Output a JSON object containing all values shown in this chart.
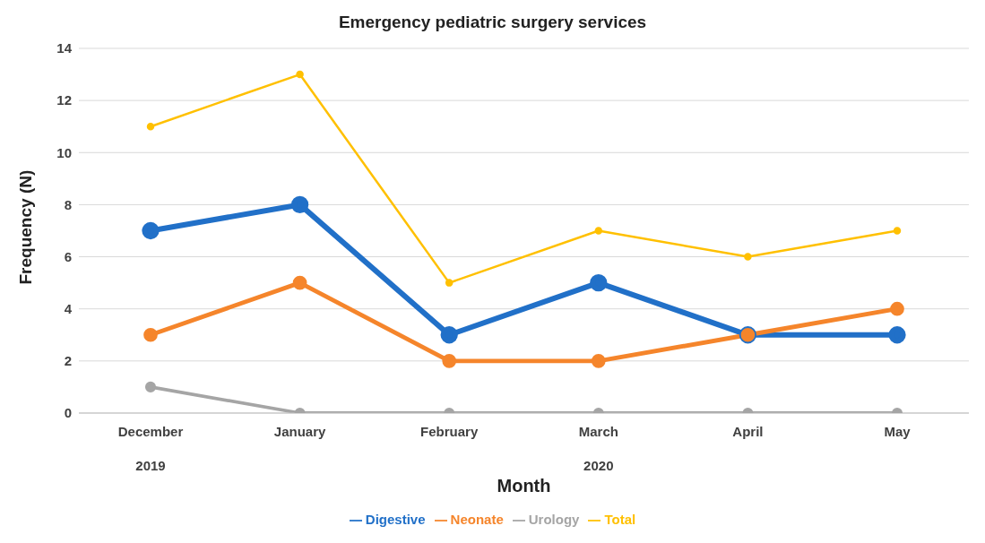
{
  "chart_data": {
    "type": "line",
    "title": "Emergency pediatric surgery services",
    "xlabel": "Month",
    "ylabel": "Frequency (N)",
    "categories": [
      "December",
      "January",
      "February",
      "March",
      "April",
      "May"
    ],
    "annotations": [
      "2019",
      "2020"
    ],
    "series": [
      {
        "name": "Digestive",
        "color": "#2170c8",
        "values": [
          7,
          8,
          3,
          5,
          3,
          3
        ]
      },
      {
        "name": "Neonate",
        "color": "#f5852b",
        "values": [
          3,
          5,
          2,
          2,
          3,
          4
        ]
      },
      {
        "name": "Urology",
        "color": "#a5a5a5",
        "values": [
          1,
          0,
          0,
          0,
          0,
          0
        ]
      },
      {
        "name": "Total",
        "color": "#ffc000",
        "values": [
          11,
          13,
          5,
          7,
          6,
          7
        ]
      }
    ],
    "ylim": [
      0,
      14
    ],
    "yticks": [
      0,
      2,
      4,
      6,
      8,
      10,
      12,
      14
    ],
    "grid": "y",
    "legend": "bottom",
    "marker": "circle",
    "line_style": "solid"
  }
}
